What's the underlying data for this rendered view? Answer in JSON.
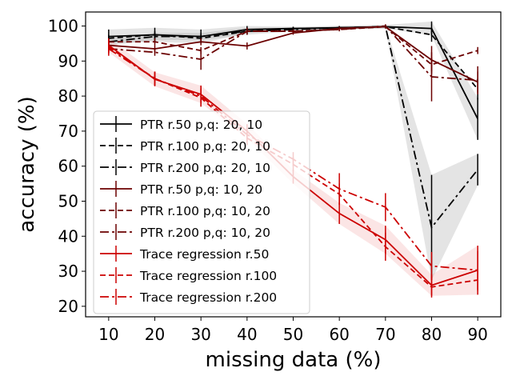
{
  "chart_data": {
    "type": "line",
    "title": "",
    "xlabel": "missing data (%)",
    "ylabel": "accuracy (%)",
    "x": [
      10,
      20,
      30,
      40,
      50,
      60,
      70,
      80,
      90
    ],
    "xlim": [
      5,
      95
    ],
    "ylim": [
      17,
      104
    ],
    "xticks": [
      10,
      20,
      30,
      40,
      50,
      60,
      70,
      80,
      90
    ],
    "yticks": [
      20,
      30,
      40,
      50,
      60,
      70,
      80,
      90,
      100
    ],
    "legend_position": "lower-left",
    "series": [
      {
        "name": "PTR r.50 p,q: 20, 10",
        "color": "#000000",
        "dash": "solid",
        "values": [
          97,
          97.5,
          97,
          99,
          99.3,
          99.5,
          99.8,
          99.3,
          73.5
        ],
        "errors": [
          2,
          2,
          2,
          1,
          0.5,
          0.5,
          0.5,
          2,
          6
        ],
        "band": true
      },
      {
        "name": "PTR r.100 p,q: 20, 10",
        "color": "#000000",
        "dash": "dashed",
        "values": [
          96.5,
          97.5,
          96.5,
          98.5,
          99.2,
          99.5,
          99.8,
          97.5,
          82
        ],
        "errors": [
          1,
          1,
          1,
          1,
          0.5,
          0.5,
          0.5,
          2,
          3
        ],
        "band": false
      },
      {
        "name": "PTR r.200 p,q: 20, 10",
        "color": "#000000",
        "dash": "dashdot",
        "values": [
          95.5,
          97,
          97,
          98.5,
          99,
          99.5,
          99.8,
          42.5,
          59
        ],
        "errors": [
          1,
          1,
          1,
          1,
          0.5,
          0.5,
          0.5,
          15,
          4.5
        ],
        "band": true
      },
      {
        "name": "PTR r.50 p,q: 10, 20",
        "color": "#6b0000",
        "dash": "solid",
        "values": [
          94.5,
          93.5,
          95.5,
          94.3,
          98,
          99.3,
          99.8,
          90.3,
          84
        ],
        "errors": [
          1,
          1,
          1,
          1,
          0.5,
          0.5,
          0.5,
          4,
          3
        ],
        "band": false
      },
      {
        "name": "PTR r.100 p,q: 10, 20",
        "color": "#6b0000",
        "dash": "dashed",
        "values": [
          95.5,
          95.5,
          93,
          98.5,
          98.5,
          99,
          99.8,
          89,
          93
        ],
        "errors": [
          1,
          1,
          1,
          1,
          0.5,
          0.5,
          0.5,
          2,
          1
        ],
        "band": false
      },
      {
        "name": "PTR r.200 p,q: 10, 20",
        "color": "#6b0000",
        "dash": "dashdot",
        "values": [
          93.5,
          92.5,
          90.5,
          98.5,
          98.5,
          99,
          100,
          85.5,
          84.5
        ],
        "errors": [
          1,
          1,
          3,
          1,
          0.5,
          0.5,
          0.5,
          7,
          4
        ],
        "band": false
      },
      {
        "name": "Trace regression r.50",
        "color": "#cc0000",
        "dash": "solid",
        "values": [
          94.5,
          84.8,
          80.5,
          70,
          57,
          46.5,
          39,
          26,
          30.3
        ],
        "errors": [
          2,
          2,
          2.5,
          2,
          2,
          3,
          4,
          3,
          7
        ],
        "band": true
      },
      {
        "name": "Trace regression r.100",
        "color": "#cc0000",
        "dash": "dashed",
        "values": [
          94,
          85,
          79.5,
          68,
          60.5,
          52,
          37,
          25.5,
          27.5
        ],
        "errors": [
          2,
          2,
          2.5,
          2,
          2,
          3,
          4,
          3,
          3
        ],
        "band": false
      },
      {
        "name": "Trace regression r.200",
        "color": "#cc0000",
        "dash": "dashdot",
        "values": [
          93.5,
          85,
          80,
          69,
          62,
          53.5,
          48.3,
          31.5,
          30.3
        ],
        "errors": [
          2,
          2,
          3,
          2,
          2,
          4.5,
          4,
          4,
          5.5
        ],
        "band": false
      }
    ]
  }
}
